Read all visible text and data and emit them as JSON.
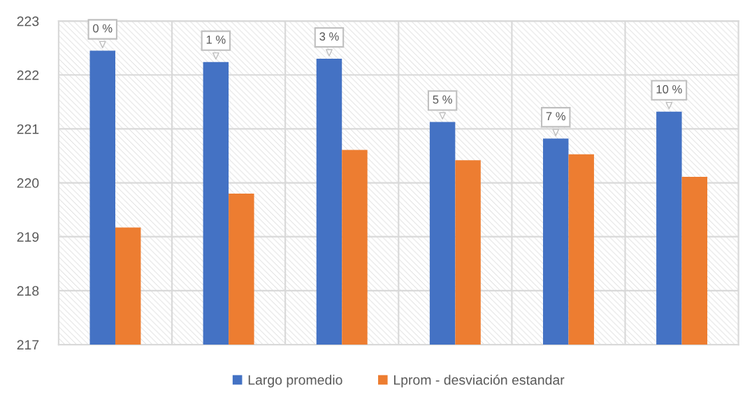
{
  "chart_data": {
    "type": "bar",
    "categories": [
      "0 %",
      "1 %",
      "3 %",
      "5 %",
      "7 %",
      "10 %"
    ],
    "series": [
      {
        "name": "Largo promedio",
        "color": "#4472c4",
        "values": [
          222.45,
          222.24,
          222.3,
          221.13,
          220.82,
          221.32
        ]
      },
      {
        "name": "Lprom - desviación estandar",
        "color": "#ed7d31",
        "values": [
          219.17,
          219.8,
          220.61,
          220.42,
          220.53,
          220.11
        ]
      }
    ],
    "ylim": [
      217,
      223
    ],
    "yticks": [
      217,
      218,
      219,
      220,
      221,
      222,
      223
    ],
    "grid": true,
    "legend": "bottom",
    "tick_labels": "y"
  }
}
